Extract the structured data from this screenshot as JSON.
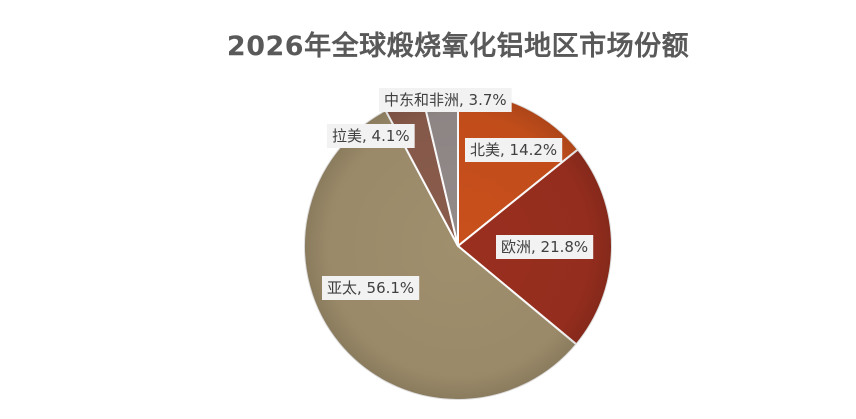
{
  "chart_data": {
    "type": "pie",
    "title": "2026年全球煅烧氧化铝地区市场份额",
    "unit": "%",
    "slices": [
      {
        "label": "北美",
        "value": 14.2,
        "display": "北美, 14.2%",
        "color": "#C9501C"
      },
      {
        "label": "欧洲",
        "value": 21.8,
        "display": "欧洲, 21.8%",
        "color": "#9A2F1F"
      },
      {
        "label": "亚太",
        "value": 56.1,
        "display": "亚太, 56.1%",
        "color": "#A08F6D"
      },
      {
        "label": "拉美",
        "value": 4.1,
        "display": "拉美, 4.1%",
        "color": "#8A5C4C"
      },
      {
        "label": "中东和非洲",
        "value": 3.7,
        "display": "中东和非洲, 3.7%",
        "color": "#938A8A"
      }
    ],
    "start_angle": "12 o'clock",
    "direction": "clockwise",
    "legend": "none",
    "data_labels": true
  }
}
